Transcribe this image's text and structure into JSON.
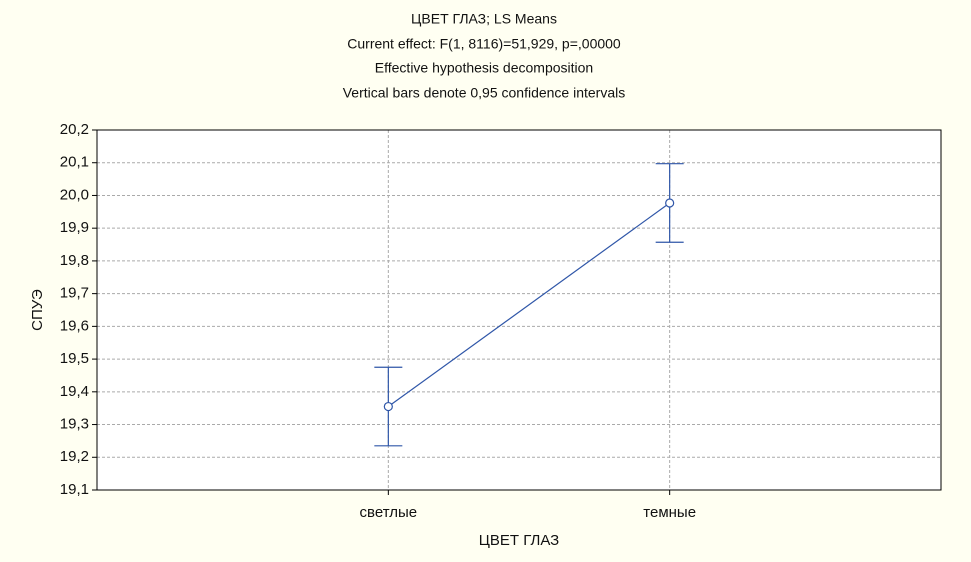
{
  "chart_data": {
    "type": "line",
    "title": "ЦВЕТ ГЛАЗ; LS Means",
    "subtitle": [
      "Current effect: F(1, 8116)=51,929, p=,00000",
      "Effective hypothesis decomposition",
      "Vertical bars denote 0,95 confidence intervals"
    ],
    "x_label": "ЦВЕТ ГЛАЗ",
    "y_label": "СПУЭ",
    "categories": [
      "светлые",
      "темные"
    ],
    "series": [
      {
        "color": "#2f56a8",
        "values": [
          19.355,
          19.977
        ],
        "errors": [
          0.12,
          0.12
        ]
      }
    ],
    "ylim": [
      19.1,
      20.2
    ],
    "yticks": [
      {
        "value": 19.1,
        "label": "19,1"
      },
      {
        "value": 19.2,
        "label": "19,2"
      },
      {
        "value": 19.3,
        "label": "19,3"
      },
      {
        "value": 19.4,
        "label": "19,4"
      },
      {
        "value": 19.5,
        "label": "19,5"
      },
      {
        "value": 19.6,
        "label": "19,6"
      },
      {
        "value": 19.7,
        "label": "19,7"
      },
      {
        "value": 19.8,
        "label": "19,8"
      },
      {
        "value": 19.9,
        "label": "19,9"
      },
      {
        "value": 20.0,
        "label": "20,0"
      },
      {
        "value": 20.1,
        "label": "20,1"
      },
      {
        "value": 20.2,
        "label": "20,2"
      }
    ],
    "grid": true
  }
}
